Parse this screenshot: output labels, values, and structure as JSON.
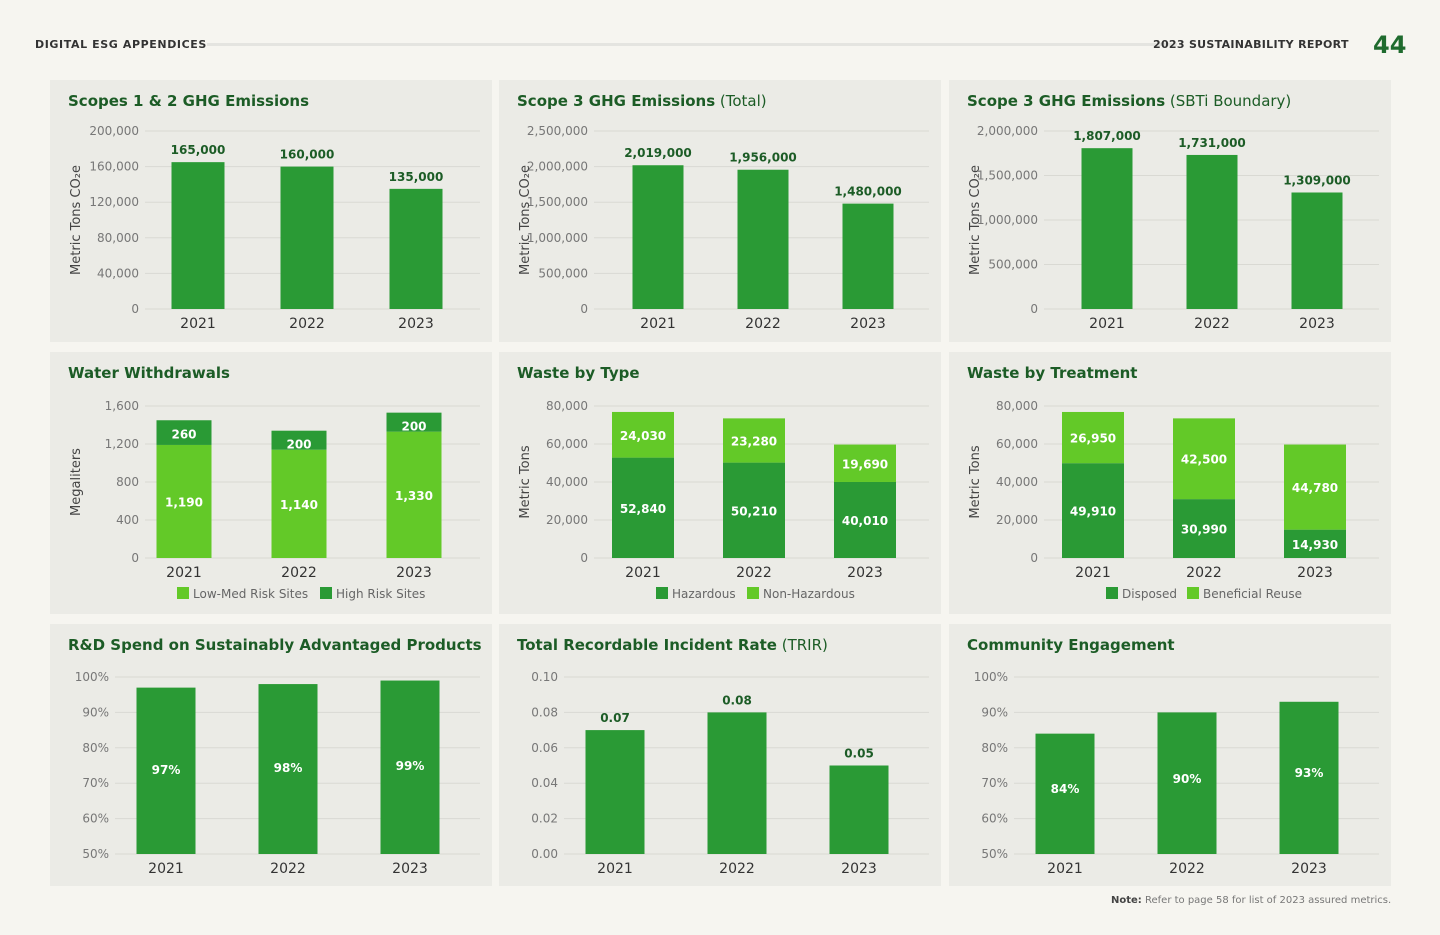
{
  "header": {
    "left_title": "DIGITAL ESG APPENDICES",
    "right_title": "2023 SUSTAINABILITY REPORT",
    "page_number": "44"
  },
  "note": {
    "label": "Note:",
    "text": "Refer to page 58 for list of 2023 assured metrics."
  },
  "colors": {
    "dark_green": "#2a9a35",
    "light_green": "#63c928",
    "title_green": "#1c5c26"
  },
  "chart_data": [
    {
      "id": "scopes12",
      "type": "bar",
      "title": "Scopes 1 & 2 GHG Emissions",
      "title_suffix": "",
      "ylabel": "Metric Tons CO₂e",
      "categories": [
        "2021",
        "2022",
        "2023"
      ],
      "ylim": [
        0,
        200000
      ],
      "yticks": [
        "0",
        "40,000",
        "80,000",
        "120,000",
        "160,000",
        "200,000"
      ],
      "series": [
        {
          "values": [
            165000,
            160000,
            135000
          ],
          "labels": [
            "165,000",
            "160,000",
            "135,000"
          ],
          "color": "dark"
        }
      ]
    },
    {
      "id": "scope3total",
      "type": "bar",
      "title": "Scope 3 GHG Emissions",
      "title_suffix": "(Total)",
      "ylabel": "Metric Tons CO₂e",
      "categories": [
        "2021",
        "2022",
        "2023"
      ],
      "ylim": [
        0,
        2500000
      ],
      "yticks": [
        "0",
        "500,000",
        "1,000,000",
        "1,500,000",
        "2,000,000",
        "2,500,000"
      ],
      "series": [
        {
          "values": [
            2019000,
            1956000,
            1480000
          ],
          "labels": [
            "2,019,000",
            "1,956,000",
            "1,480,000"
          ],
          "color": "dark"
        }
      ]
    },
    {
      "id": "scope3sbti",
      "type": "bar",
      "title": "Scope 3 GHG Emissions",
      "title_suffix": "(SBTi Boundary)",
      "ylabel": "Metric Tons CO₂e",
      "categories": [
        "2021",
        "2022",
        "2023"
      ],
      "ylim": [
        0,
        2000000
      ],
      "yticks": [
        "0",
        "500,000",
        "1,000,000",
        "1,500,000",
        "2,000,000"
      ],
      "series": [
        {
          "values": [
            1807000,
            1731000,
            1309000
          ],
          "labels": [
            "1,807,000",
            "1,731,000",
            "1,309,000"
          ],
          "color": "dark"
        }
      ]
    },
    {
      "id": "water",
      "type": "stacked-bar",
      "title": "Water Withdrawals",
      "title_suffix": "",
      "ylabel": "Megaliters",
      "categories": [
        "2021",
        "2022",
        "2023"
      ],
      "ylim": [
        0,
        1600
      ],
      "yticks": [
        "0",
        "400",
        "800",
        "1,200",
        "1,600"
      ],
      "series": [
        {
          "name": "Low-Med Risk Sites",
          "values": [
            1190,
            1140,
            1330
          ],
          "labels": [
            "1,190",
            "1,140",
            "1,330"
          ],
          "color": "light"
        },
        {
          "name": "High Risk Sites",
          "values": [
            260,
            200,
            200
          ],
          "labels": [
            "260",
            "200",
            "200"
          ],
          "color": "dark"
        }
      ]
    },
    {
      "id": "wastetype",
      "type": "stacked-bar",
      "title": "Waste by Type",
      "title_suffix": "",
      "ylabel": "Metric Tons",
      "categories": [
        "2021",
        "2022",
        "2023"
      ],
      "ylim": [
        0,
        80000
      ],
      "yticks": [
        "0",
        "20,000",
        "40,000",
        "60,000",
        "80,000"
      ],
      "series": [
        {
          "name": "Hazardous",
          "values": [
            52840,
            50210,
            40010
          ],
          "labels": [
            "52,840",
            "50,210",
            "40,010"
          ],
          "color": "dark"
        },
        {
          "name": "Non-Hazardous",
          "values": [
            24030,
            23280,
            19690
          ],
          "labels": [
            "24,030",
            "23,280",
            "19,690"
          ],
          "color": "light"
        }
      ]
    },
    {
      "id": "wastetreat",
      "type": "stacked-bar",
      "title": "Waste by Treatment",
      "title_suffix": "",
      "ylabel": "Metric Tons",
      "categories": [
        "2021",
        "2022",
        "2023"
      ],
      "ylim": [
        0,
        80000
      ],
      "yticks": [
        "0",
        "20,000",
        "40,000",
        "60,000",
        "80,000"
      ],
      "series": [
        {
          "name": "Disposed",
          "values": [
            49910,
            30990,
            14930
          ],
          "labels": [
            "49,910",
            "30,990",
            "14,930"
          ],
          "color": "dark"
        },
        {
          "name": "Beneficial Reuse",
          "values": [
            26950,
            42500,
            44780
          ],
          "labels": [
            "26,950",
            "42,500",
            "44,780"
          ],
          "color": "light"
        }
      ]
    },
    {
      "id": "rnd",
      "type": "bar",
      "title": "R&D Spend on Sustainably Advantaged Products",
      "title_suffix": "",
      "ylabel": "",
      "categories": [
        "2021",
        "2022",
        "2023"
      ],
      "ylim": [
        50,
        100
      ],
      "yticks": [
        "50%",
        "60%",
        "70%",
        "80%",
        "90%",
        "100%"
      ],
      "series": [
        {
          "values": [
            97,
            98,
            99
          ],
          "labels": [
            "97%",
            "98%",
            "99%"
          ],
          "color": "dark"
        }
      ]
    },
    {
      "id": "trir",
      "type": "bar",
      "title": "Total Recordable Incident Rate",
      "title_suffix": "(TRIR)",
      "ylabel": "",
      "categories": [
        "2021",
        "2022",
        "2023"
      ],
      "ylim": [
        0,
        0.1
      ],
      "yticks": [
        "0.00",
        "0.02",
        "0.04",
        "0.06",
        "0.08",
        "0.10"
      ],
      "series": [
        {
          "values": [
            0.07,
            0.08,
            0.05
          ],
          "labels": [
            "0.07",
            "0.08",
            "0.05"
          ],
          "color": "dark"
        }
      ]
    },
    {
      "id": "community",
      "type": "bar",
      "title": "Community Engagement",
      "title_suffix": "",
      "ylabel": "",
      "categories": [
        "2021",
        "2022",
        "2023"
      ],
      "ylim": [
        50,
        100
      ],
      "yticks": [
        "50%",
        "60%",
        "70%",
        "80%",
        "90%",
        "100%"
      ],
      "series": [
        {
          "values": [
            84,
            90,
            93
          ],
          "labels": [
            "84%",
            "90%",
            "93%"
          ],
          "color": "dark"
        }
      ]
    }
  ]
}
